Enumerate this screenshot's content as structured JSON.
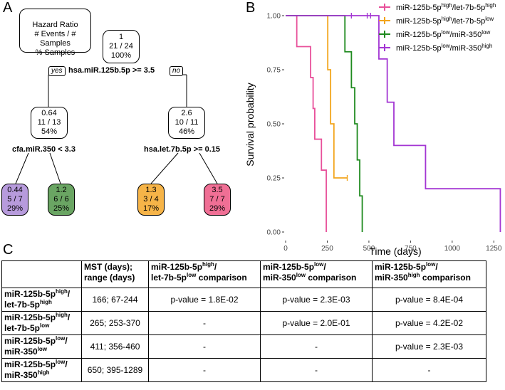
{
  "panels": {
    "a": "A",
    "b": "B",
    "c": "C"
  },
  "tree": {
    "legend_box": {
      "line1": "Hazard Ratio",
      "line2": "# Events / # Samples",
      "line3": "% Samples"
    },
    "root": {
      "hr": "1",
      "ratio": "21 / 24",
      "pct": "100%",
      "split": "hsa.miR.125b.5p >= 3.5"
    },
    "yes": "yes",
    "no": "no",
    "left": {
      "hr": "0.64",
      "ratio": "11 / 13",
      "pct": "54%",
      "split": "cfa.miR.350 < 3.3"
    },
    "right": {
      "hr": "2.6",
      "ratio": "10 / 11",
      "pct": "46%",
      "split": "hsa.let.7b.5p >= 0.15"
    },
    "leaves": [
      {
        "hr": "0.44",
        "ratio": "5 / 7",
        "pct": "29%",
        "color": "#b79bdc"
      },
      {
        "hr": "1.2",
        "ratio": "6 / 6",
        "pct": "25%",
        "color": "#6aa563"
      },
      {
        "hr": "1.3",
        "ratio": "3 / 4",
        "pct": "17%",
        "color": "#f6b448"
      },
      {
        "hr": "3.5",
        "ratio": "7 / 7",
        "pct": "29%",
        "color": "#f06f95"
      }
    ]
  },
  "chart_data": {
    "type": "line",
    "subtype": "kaplan-meier step",
    "xlabel": "Time (days)",
    "ylabel": "Survival probability",
    "xlim": [
      0,
      1300
    ],
    "ylim": [
      0,
      1
    ],
    "xticks": [
      "0",
      "250",
      "500",
      "750",
      "1000",
      "1250"
    ],
    "yticks": [
      "0.00",
      "0.25",
      "0.50",
      "0.75",
      "1.00"
    ],
    "legend_position": "top-right",
    "series": [
      {
        "name": "miR-125b-5p high / let-7b-5p high",
        "label_main": "miR-125b-5p",
        "sup1": "high",
        "mid": "/let-7b-5p",
        "sup2": "high",
        "color": "#e8509a",
        "times": [
          0,
          67,
          150,
          165,
          175,
          215,
          244
        ],
        "surv": [
          1.0,
          0.857,
          0.714,
          0.571,
          0.429,
          0.286,
          0.0
        ],
        "censor_times": []
      },
      {
        "name": "miR-125b-5p high / let-7b-5p low",
        "label_main": "miR-125b-5p",
        "sup1": "high",
        "mid": "/let-7b-5p",
        "sup2": "low",
        "color": "#f2a51c",
        "times": [
          0,
          253,
          270,
          290,
          370
        ],
        "surv": [
          1.0,
          0.75,
          0.5,
          0.25,
          0.25
        ],
        "censor_times": [
          370
        ]
      },
      {
        "name": "miR-125b-5p low / miR-350 low",
        "label_main": "miR-125b-5p",
        "sup1": "low",
        "mid": "/miR-350",
        "sup2": "low",
        "color": "#1e8a1e",
        "times": [
          0,
          356,
          395,
          415,
          430,
          445,
          460
        ],
        "surv": [
          1.0,
          0.833,
          0.667,
          0.5,
          0.333,
          0.167,
          0.0
        ],
        "censor_times": []
      },
      {
        "name": "miR-125b-5p low / miR-350 high",
        "label_main": "miR-125b-5p",
        "sup1": "low",
        "mid": "/miR-350",
        "sup2": "high",
        "color": "#a336d3",
        "times": [
          0,
          560,
          610,
          650,
          840,
          1289
        ],
        "surv": [
          1.0,
          0.8,
          0.6,
          0.4,
          0.2,
          0.0
        ],
        "censor_times": [
          395,
          490,
          510
        ]
      }
    ]
  },
  "table": {
    "headers": [
      {
        "main": "MST (days);",
        "sub": "range (days)"
      },
      {
        "a": "miR-125b-5p",
        "asup": "high",
        "b": "/",
        "c": "let-7b-5p",
        "csup": "low",
        "d": " comparison"
      },
      {
        "a": "miR-125b-5p",
        "asup": "low",
        "b": "/",
        "c": "miR-350",
        "csup": "low",
        "d": " comparison"
      },
      {
        "a": "miR-125b-5p",
        "asup": "low",
        "b": "/",
        "c": "miR-350",
        "csup": "high",
        "d": " comparison"
      }
    ],
    "rows": [
      {
        "a": "miR-125b-5p",
        "asup": "high",
        "b": "/",
        "c": "let-7b-5p",
        "csup": "high",
        "mst": "166; 67-244",
        "cells": [
          "p-value = 1.8E-02",
          "p-value = 2.3E-03",
          "p-value = 8.4E-04"
        ]
      },
      {
        "a": "miR-125b-5p",
        "asup": "high",
        "b": "/",
        "c": "let-7b-5p",
        "csup": "low",
        "mst": "265; 253-370",
        "cells": [
          "-",
          "p-value = 2.0E-01",
          "p-value = 4.2E-02"
        ]
      },
      {
        "a": "miR-125b-5p",
        "asup": "low",
        "b": "/",
        "c": "miR-350",
        "csup": "low",
        "mst": "411; 356-460",
        "cells": [
          "-",
          "-",
          "p-value = 2.3E-03"
        ]
      },
      {
        "a": "miR-125b-5p",
        "asup": "low",
        "b": "/",
        "c": "miR-350",
        "csup": "high",
        "mst": "650; 395-1289",
        "cells": [
          "-",
          "-",
          "-"
        ]
      }
    ]
  }
}
